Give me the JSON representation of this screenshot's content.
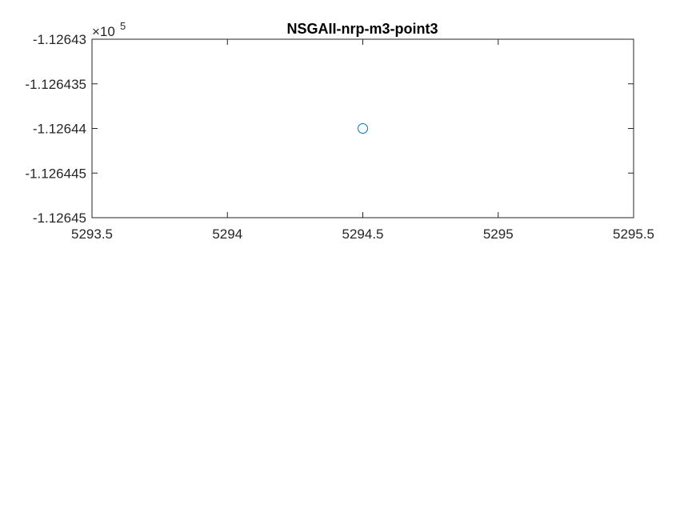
{
  "chart_data": {
    "type": "scatter",
    "title": "NSGAII-nrp-m3-point3",
    "xlabel": "",
    "ylabel": "",
    "xlim": [
      5293.5,
      5295.5
    ],
    "ylim": [
      -1.12645,
      -1.12643
    ],
    "y_exponent_label": {
      "base": "×10",
      "exp": "5"
    },
    "xticks": [
      {
        "value": 5293.5,
        "label": "5293.5"
      },
      {
        "value": 5294,
        "label": "5294"
      },
      {
        "value": 5294.5,
        "label": "5294.5"
      },
      {
        "value": 5295,
        "label": "5295"
      },
      {
        "value": 5295.5,
        "label": "5295.5"
      }
    ],
    "yticks": [
      {
        "value": -1.12643,
        "label": "-1.12643"
      },
      {
        "value": -1.126435,
        "label": "-1.126435"
      },
      {
        "value": -1.12644,
        "label": "-1.12644"
      },
      {
        "value": -1.126445,
        "label": "-1.126445"
      },
      {
        "value": -1.12645,
        "label": "-1.12645"
      }
    ],
    "series": [
      {
        "marker": "circle",
        "color": "#0072BD",
        "points": [
          {
            "x": 5294.5,
            "y": -1.12644
          }
        ]
      }
    ],
    "grid": false,
    "box": true
  }
}
